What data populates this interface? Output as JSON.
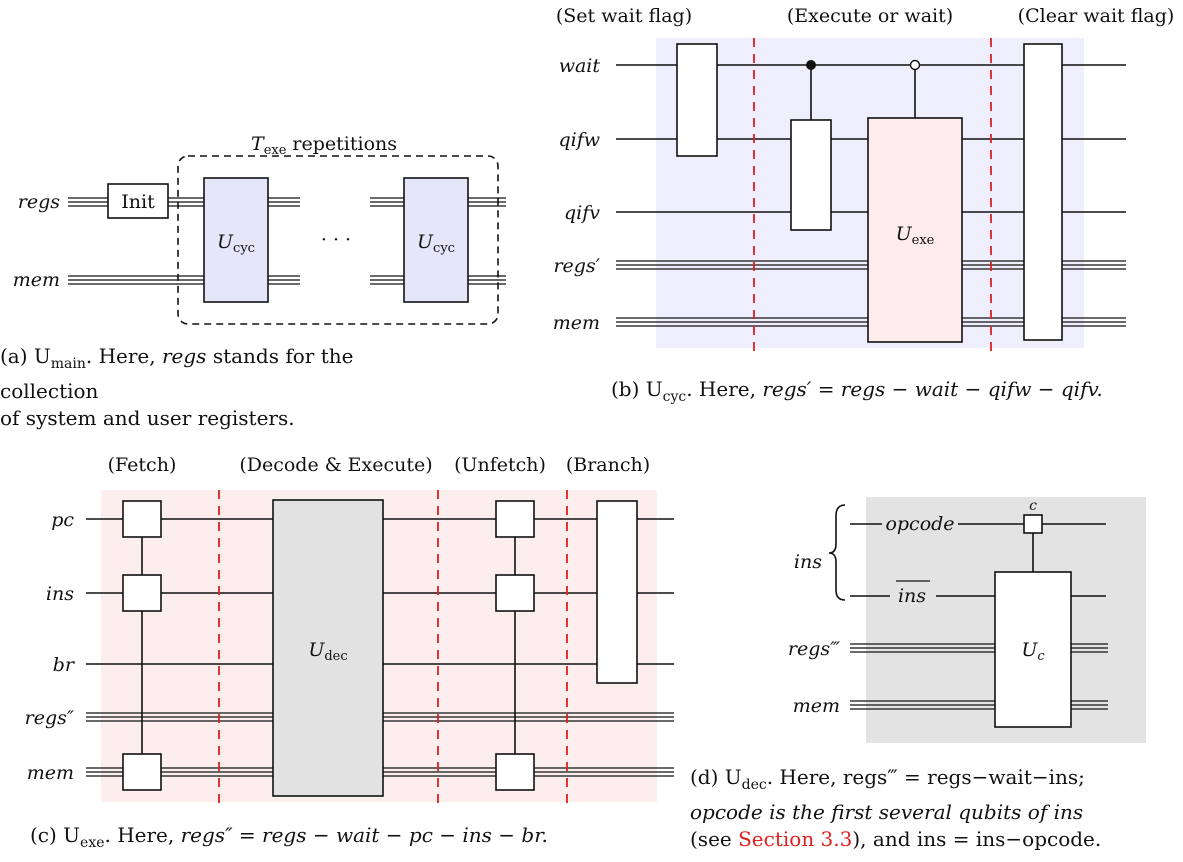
{
  "panel_a": {
    "wires": [
      "regs",
      "mem"
    ],
    "init_label": "Init",
    "gate_label": "U",
    "gate_sub": "cyc",
    "ellipsis": "· · ·",
    "repetitions_T": "T",
    "repetitions_sub": "exe",
    "repetitions_text": "repetitions",
    "caption_line1_U": "(a) U",
    "caption_line1_sub": "main",
    "caption_line1_rest": ". Here,",
    "caption_line1_it": "regs",
    "caption_line1_end": "stands for the collection",
    "caption_line2": "of system and user registers."
  },
  "panel_b": {
    "wires": [
      "wait",
      "qifw",
      "qifv",
      "regs′",
      "mem"
    ],
    "headers": [
      "(Set wait flag)",
      "(Execute or wait)",
      "(Clear wait flag)"
    ],
    "gate_label": "U",
    "gate_sub": "exe",
    "caption_pre": "(b) U",
    "caption_sub": "cyc",
    "caption_here": ". Here,",
    "caption_eq": "regs′ = regs − wait − qifw − qifv."
  },
  "panel_c": {
    "wires": [
      "pc",
      "ins",
      "br",
      "regs″",
      "mem"
    ],
    "headers": [
      "(Fetch)",
      "(Decode & Execute)",
      "(Unfetch)",
      "(Branch)"
    ],
    "gate_label": "U",
    "gate_sub": "dec",
    "caption_pre": "(c) U",
    "caption_sub": "exe",
    "caption_here": ". Here,",
    "caption_eq": "regs″ = regs − wait − pc − ins − br."
  },
  "panel_d": {
    "brace_label": "ins",
    "wire_opcode": "opcode",
    "wire_insbar": "ins",
    "wire_regs3": "regs‴",
    "wire_mem": "mem",
    "control_label": "c",
    "gate_label": "U",
    "gate_sub": "c",
    "caption_pre": "(d) U",
    "caption_sub": "dec",
    "caption_l1_rest": ". Here, regs‴ = regs−wait−ins;",
    "caption_l2": "opcode is the first several qubits of ins",
    "caption_l3_pre": "(see ",
    "caption_l3_link": "Section 3.3",
    "caption_l3_post": "), and ins = ins−opcode."
  },
  "colors": {
    "lavender": "#eeeefc",
    "pink": "#fdeeee",
    "gray": "#e3e3e3",
    "gate_lavender": "#e6e6fa",
    "gate_pink": "#fdeceb",
    "gate_gray": "#e2e2e2",
    "red_dash": "#e02020",
    "link": "#e0201e"
  }
}
